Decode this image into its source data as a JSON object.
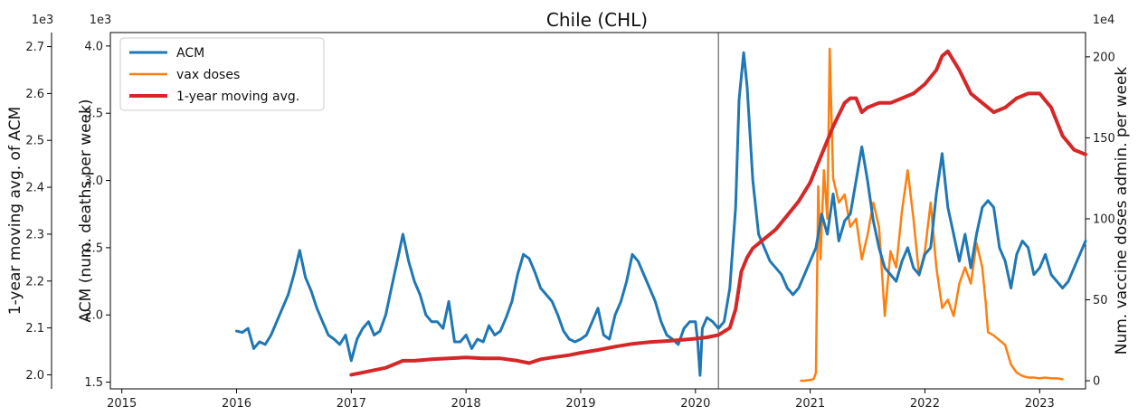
{
  "chart_data": {
    "type": "line",
    "title": "Chile (CHL)",
    "legend_position": "top-left",
    "grid": false,
    "vline_x": 2020.2,
    "x_axis": {
      "range": [
        2014.9,
        2023.4
      ],
      "ticks": [
        2015,
        2016,
        2017,
        2018,
        2019,
        2020,
        2021,
        2022,
        2023
      ],
      "tick_labels": [
        "2015",
        "2016",
        "2017",
        "2018",
        "2019",
        "2020",
        "2021",
        "2022",
        "2023"
      ]
    },
    "outer_left_axis": {
      "label": "1-year moving avg. of ACM",
      "exponent_label": "1e3",
      "range": [
        1.97,
        2.73
      ],
      "ticks": [
        2.0,
        2.1,
        2.2,
        2.3,
        2.4,
        2.5,
        2.6,
        2.7
      ],
      "tick_labels": [
        "2.0",
        "2.1",
        "2.2",
        "2.3",
        "2.4",
        "2.5",
        "2.6",
        "2.7"
      ]
    },
    "left_axis": {
      "label": "ACM (num. deaths per week)",
      "exponent_label": "1e3",
      "range": [
        1.45,
        4.1
      ],
      "ticks": [
        1.5,
        2.0,
        2.5,
        3.0,
        3.5,
        4.0
      ],
      "tick_labels": [
        "1.5",
        "2.0",
        "2.5",
        "3.0",
        "3.5",
        "4.0"
      ]
    },
    "right_axis": {
      "label": "Num. vaccine doses admin. per week",
      "exponent_label": "1e4",
      "range": [
        -5,
        215
      ],
      "ticks": [
        0,
        50,
        100,
        150,
        200
      ],
      "tick_labels": [
        "0",
        "50",
        "100",
        "150",
        "200"
      ]
    },
    "series": [
      {
        "name": "ACM",
        "axis": "left",
        "color": "#1f77b4",
        "x": [
          2016.0,
          2016.05,
          2016.1,
          2016.15,
          2016.2,
          2016.25,
          2016.3,
          2016.35,
          2016.4,
          2016.45,
          2016.5,
          2016.55,
          2016.6,
          2016.65,
          2016.7,
          2016.75,
          2016.8,
          2016.85,
          2016.9,
          2016.95,
          2017.0,
          2017.05,
          2017.1,
          2017.15,
          2017.2,
          2017.25,
          2017.3,
          2017.35,
          2017.4,
          2017.45,
          2017.5,
          2017.55,
          2017.6,
          2017.65,
          2017.7,
          2017.75,
          2017.8,
          2017.85,
          2017.9,
          2017.95,
          2018.0,
          2018.05,
          2018.1,
          2018.15,
          2018.2,
          2018.25,
          2018.3,
          2018.35,
          2018.4,
          2018.45,
          2018.5,
          2018.55,
          2018.6,
          2018.65,
          2018.7,
          2018.75,
          2018.8,
          2018.85,
          2018.9,
          2018.95,
          2019.0,
          2019.05,
          2019.1,
          2019.15,
          2019.2,
          2019.25,
          2019.3,
          2019.35,
          2019.4,
          2019.45,
          2019.5,
          2019.55,
          2019.6,
          2019.65,
          2019.7,
          2019.75,
          2019.8,
          2019.85,
          2019.9,
          2019.95,
          2020.0,
          2020.02,
          2020.04,
          2020.06,
          2020.1,
          2020.15,
          2020.2,
          2020.25,
          2020.3,
          2020.35,
          2020.38,
          2020.42,
          2020.45,
          2020.5,
          2020.55,
          2020.6,
          2020.65,
          2020.7,
          2020.75,
          2020.8,
          2020.85,
          2020.9,
          2020.95,
          2021.0,
          2021.05,
          2021.1,
          2021.15,
          2021.2,
          2021.25,
          2021.3,
          2021.35,
          2021.4,
          2021.45,
          2021.5,
          2021.55,
          2021.6,
          2021.65,
          2021.7,
          2021.75,
          2021.8,
          2021.85,
          2021.9,
          2021.95,
          2022.0,
          2022.05,
          2022.1,
          2022.15,
          2022.2,
          2022.25,
          2022.3,
          2022.35,
          2022.4,
          2022.45,
          2022.5,
          2022.55,
          2022.6,
          2022.65,
          2022.7,
          2022.75,
          2022.8,
          2022.85,
          2022.9,
          2022.95,
          2023.0,
          2023.05,
          2023.1,
          2023.15,
          2023.2,
          2023.25,
          2023.3,
          2023.35,
          2023.4
        ],
        "values": [
          1.88,
          1.87,
          1.9,
          1.75,
          1.8,
          1.78,
          1.85,
          1.95,
          2.05,
          2.15,
          2.3,
          2.48,
          2.28,
          2.18,
          2.05,
          1.95,
          1.85,
          1.82,
          1.78,
          1.85,
          1.66,
          1.82,
          1.9,
          1.95,
          1.85,
          1.88,
          2.0,
          2.2,
          2.4,
          2.6,
          2.4,
          2.25,
          2.15,
          2.0,
          1.95,
          1.95,
          1.9,
          2.1,
          1.8,
          1.8,
          1.85,
          1.75,
          1.82,
          1.8,
          1.92,
          1.85,
          1.88,
          1.98,
          2.1,
          2.3,
          2.45,
          2.42,
          2.32,
          2.2,
          2.15,
          2.1,
          2.0,
          1.88,
          1.82,
          1.8,
          1.82,
          1.85,
          1.95,
          2.05,
          1.85,
          1.82,
          2.0,
          2.1,
          2.25,
          2.45,
          2.4,
          2.3,
          2.2,
          2.1,
          1.95,
          1.85,
          1.82,
          1.78,
          1.9,
          1.95,
          1.95,
          1.8,
          1.55,
          1.9,
          1.98,
          1.95,
          1.9,
          1.95,
          2.2,
          2.8,
          3.6,
          3.95,
          3.7,
          3.0,
          2.6,
          2.5,
          2.4,
          2.35,
          2.3,
          2.2,
          2.15,
          2.2,
          2.3,
          2.4,
          2.5,
          2.75,
          2.6,
          2.9,
          2.55,
          2.7,
          2.75,
          3.0,
          3.25,
          3.0,
          2.7,
          2.5,
          2.35,
          2.3,
          2.25,
          2.4,
          2.5,
          2.35,
          2.3,
          2.45,
          2.5,
          2.9,
          3.2,
          2.8,
          2.6,
          2.4,
          2.6,
          2.35,
          2.6,
          2.8,
          2.85,
          2.8,
          2.5,
          2.4,
          2.2,
          2.45,
          2.55,
          2.5,
          2.3,
          2.35,
          2.45,
          2.3,
          2.25,
          2.2,
          2.25,
          2.35,
          2.45,
          2.55
        ]
      },
      {
        "name": "vax doses",
        "axis": "right",
        "color": "#ff7f0e",
        "x": [
          2020.92,
          2020.95,
          2021.0,
          2021.03,
          2021.05,
          2021.07,
          2021.09,
          2021.12,
          2021.15,
          2021.17,
          2021.2,
          2021.25,
          2021.3,
          2021.35,
          2021.4,
          2021.45,
          2021.5,
          2021.55,
          2021.6,
          2021.65,
          2021.7,
          2021.75,
          2021.8,
          2021.85,
          2021.9,
          2021.95,
          2022.0,
          2022.05,
          2022.1,
          2022.15,
          2022.2,
          2022.25,
          2022.3,
          2022.35,
          2022.4,
          2022.45,
          2022.5,
          2022.53,
          2022.55,
          2022.6,
          2022.65,
          2022.7,
          2022.75,
          2022.8,
          2022.85,
          2022.9,
          2022.95,
          2023.0,
          2023.05,
          2023.1,
          2023.15,
          2023.2
        ],
        "values": [
          0,
          0,
          0.5,
          1,
          5,
          120,
          75,
          130,
          100,
          205,
          125,
          110,
          115,
          95,
          100,
          75,
          90,
          110,
          95,
          40,
          80,
          70,
          105,
          130,
          100,
          65,
          80,
          110,
          70,
          45,
          50,
          40,
          60,
          70,
          60,
          85,
          70,
          48,
          30,
          28,
          25,
          22,
          10,
          5,
          3,
          2,
          2,
          1.5,
          2,
          1.5,
          1.5,
          1
        ]
      },
      {
        "name": "1-year moving avg.",
        "axis": "outer_left",
        "color": "#d62728",
        "x": [
          2017.0,
          2017.1,
          2017.2,
          2017.3,
          2017.4,
          2017.45,
          2017.55,
          2017.7,
          2017.85,
          2018.0,
          2018.15,
          2018.3,
          2018.45,
          2018.55,
          2018.65,
          2018.75,
          2018.9,
          2019.0,
          2019.15,
          2019.3,
          2019.45,
          2019.6,
          2019.75,
          2019.9,
          2020.0,
          2020.1,
          2020.2,
          2020.3,
          2020.35,
          2020.4,
          2020.45,
          2020.5,
          2020.6,
          2020.7,
          2020.8,
          2020.9,
          2021.0,
          2021.1,
          2021.2,
          2021.3,
          2021.35,
          2021.4,
          2021.45,
          2021.5,
          2021.6,
          2021.7,
          2021.8,
          2021.9,
          2022.0,
          2022.1,
          2022.15,
          2022.2,
          2022.3,
          2022.4,
          2022.5,
          2022.6,
          2022.7,
          2022.8,
          2022.9,
          2023.0,
          2023.1,
          2023.2,
          2023.3,
          2023.4
        ],
        "values": [
          2.0,
          2.005,
          2.01,
          2.015,
          2.025,
          2.03,
          2.03,
          2.033,
          2.035,
          2.037,
          2.035,
          2.035,
          2.03,
          2.025,
          2.033,
          2.037,
          2.042,
          2.047,
          2.053,
          2.06,
          2.066,
          2.07,
          2.072,
          2.075,
          2.077,
          2.08,
          2.085,
          2.1,
          2.14,
          2.22,
          2.25,
          2.27,
          2.29,
          2.31,
          2.34,
          2.37,
          2.41,
          2.47,
          2.53,
          2.58,
          2.59,
          2.59,
          2.56,
          2.57,
          2.58,
          2.58,
          2.59,
          2.6,
          2.62,
          2.65,
          2.68,
          2.69,
          2.65,
          2.6,
          2.58,
          2.56,
          2.57,
          2.59,
          2.6,
          2.6,
          2.57,
          2.51,
          2.48,
          2.47
        ]
      }
    ]
  }
}
